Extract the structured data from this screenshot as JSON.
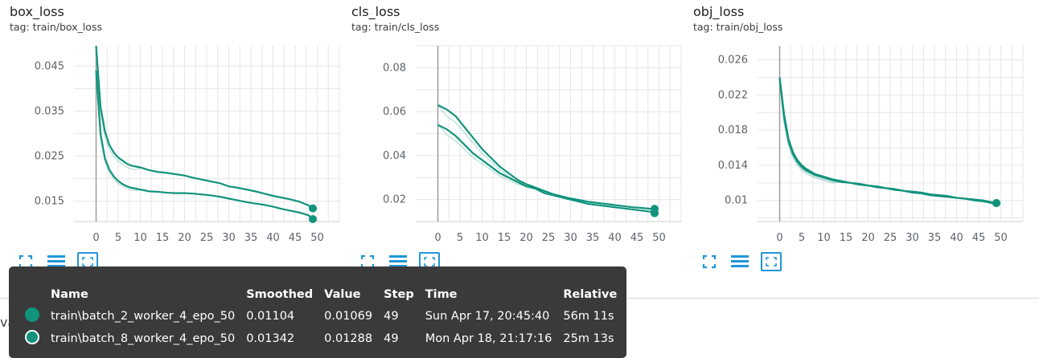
{
  "accent_color": "#2196d8",
  "charts": [
    {
      "title": "box_loss",
      "tag": "tag: train/box_loss",
      "chart_data": {
        "type": "line",
        "xlabel": "",
        "ylabel": "",
        "x_ticks": [
          "0",
          "5",
          "10",
          "15",
          "20",
          "25",
          "30",
          "35",
          "40",
          "45",
          "50"
        ],
        "y_ticks": [
          "0.015",
          "0.025",
          "0.035",
          "0.045"
        ],
        "y_tick_values": [
          0.015,
          0.025,
          0.035,
          0.045
        ],
        "xlim": [
          -5,
          55
        ],
        "ylim": [
          0.0105,
          0.0495
        ],
        "grid": true,
        "series": [
          {
            "name": "train\\batch_2_worker_4_epo_50",
            "color": "#11937c",
            "x": [
              0,
              1,
              2,
              3,
              4,
              5,
              6,
              7,
              8,
              9,
              10,
              12,
              14,
              16,
              18,
              20,
              22,
              24,
              26,
              28,
              30,
              32,
              34,
              36,
              38,
              40,
              42,
              44,
              46,
              48,
              49
            ],
            "y": [
              0.044,
              0.03,
              0.0245,
              0.022,
              0.0205,
              0.0195,
              0.0188,
              0.0183,
              0.018,
              0.0178,
              0.0176,
              0.0172,
              0.0171,
              0.0169,
              0.0168,
              0.0168,
              0.0167,
              0.0165,
              0.0163,
              0.016,
              0.0156,
              0.0152,
              0.0148,
              0.0145,
              0.0142,
              0.0138,
              0.0133,
              0.0129,
              0.0125,
              0.0119,
              0.01104
            ]
          },
          {
            "name": "train\\batch_8_worker_4_epo_50",
            "color": "#11937c",
            "x": [
              0,
              1,
              2,
              3,
              4,
              5,
              6,
              7,
              8,
              9,
              10,
              12,
              14,
              16,
              18,
              20,
              22,
              24,
              26,
              28,
              30,
              32,
              34,
              36,
              38,
              40,
              42,
              44,
              46,
              48,
              49
            ],
            "y": [
              0.0495,
              0.036,
              0.0305,
              0.0275,
              0.0258,
              0.0247,
              0.024,
              0.0233,
              0.0229,
              0.0227,
              0.0225,
              0.0219,
              0.0215,
              0.0213,
              0.021,
              0.0207,
              0.0202,
              0.0198,
              0.0194,
              0.019,
              0.0183,
              0.018,
              0.0176,
              0.0172,
              0.0167,
              0.0162,
              0.0158,
              0.0154,
              0.0149,
              0.0141,
              0.01342
            ]
          }
        ]
      }
    },
    {
      "title": "cls_loss",
      "tag": "tag: train/cls_loss",
      "chart_data": {
        "type": "line",
        "xlabel": "",
        "ylabel": "",
        "x_ticks": [
          "0",
          "5",
          "10",
          "15",
          "20",
          "25",
          "30",
          "35",
          "40",
          "45",
          "50"
        ],
        "y_ticks": [
          "0.02",
          "0.04",
          "0.06",
          "0.08"
        ],
        "y_tick_values": [
          0.02,
          0.04,
          0.06,
          0.08
        ],
        "xlim": [
          -5,
          55
        ],
        "ylim": [
          0.01,
          0.09
        ],
        "grid": true,
        "series": [
          {
            "name": "train\\batch_2_worker_4_epo_50",
            "color": "#11937c",
            "x": [
              0,
              2,
              4,
              6,
              8,
              10,
              12,
              14,
              16,
              18,
              20,
              22,
              24,
              26,
              28,
              30,
              32,
              34,
              36,
              38,
              40,
              42,
              44,
              46,
              48,
              49
            ],
            "y": [
              0.054,
              0.052,
              0.049,
              0.045,
              0.041,
              0.038,
              0.035,
              0.032,
              0.03,
              0.028,
              0.026,
              0.025,
              0.023,
              0.022,
              0.021,
              0.02,
              0.019,
              0.018,
              0.0175,
              0.017,
              0.0165,
              0.016,
              0.0155,
              0.015,
              0.0145,
              0.0138
            ]
          },
          {
            "name": "train\\batch_8_worker_4_epo_50",
            "color": "#11937c",
            "x": [
              0,
              2,
              4,
              6,
              8,
              10,
              12,
              14,
              16,
              18,
              20,
              22,
              24,
              26,
              28,
              30,
              32,
              34,
              36,
              38,
              40,
              42,
              44,
              46,
              48,
              49
            ],
            "y": [
              0.063,
              0.061,
              0.058,
              0.053,
              0.048,
              0.043,
              0.039,
              0.035,
              0.032,
              0.029,
              0.027,
              0.0255,
              0.024,
              0.0225,
              0.0215,
              0.0205,
              0.0198,
              0.019,
              0.0185,
              0.018,
              0.0175,
              0.017,
              0.0165,
              0.0162,
              0.0158,
              0.0158
            ]
          }
        ]
      }
    },
    {
      "title": "obj_loss",
      "tag": "tag: train/obj_loss",
      "chart_data": {
        "type": "line",
        "xlabel": "",
        "ylabel": "",
        "x_ticks": [
          "0",
          "5",
          "10",
          "15",
          "20",
          "25",
          "30",
          "35",
          "40",
          "45",
          "50"
        ],
        "y_ticks": [
          "0.01",
          "0.014",
          "0.018",
          "0.022",
          "0.026"
        ],
        "y_tick_values": [
          0.01,
          0.014,
          0.018,
          0.022,
          0.026
        ],
        "xlim": [
          -5,
          55
        ],
        "ylim": [
          0.0076,
          0.0276
        ],
        "grid": true,
        "series": [
          {
            "name": "train\\batch_2_worker_4_epo_50",
            "color": "#11937c",
            "x": [
              0,
              1,
              2,
              3,
              4,
              5,
              6,
              8,
              10,
              12,
              14,
              16,
              18,
              20,
              22,
              24,
              26,
              28,
              30,
              32,
              34,
              36,
              38,
              40,
              42,
              44,
              46,
              48,
              49
            ],
            "y": [
              0.0238,
              0.0195,
              0.0168,
              0.0153,
              0.0144,
              0.0138,
              0.0134,
              0.0129,
              0.0126,
              0.0123,
              0.0121,
              0.012,
              0.0118,
              0.0117,
              0.0115,
              0.0114,
              0.0112,
              0.0111,
              0.0109,
              0.0108,
              0.0106,
              0.0105,
              0.0104,
              0.0103,
              0.0102,
              0.01,
              0.0099,
              0.0097,
              0.0097
            ]
          },
          {
            "name": "train\\batch_8_worker_4_epo_50",
            "color": "#11937c",
            "x": [
              0,
              1,
              2,
              3,
              4,
              5,
              6,
              8,
              10,
              12,
              14,
              16,
              18,
              20,
              22,
              24,
              26,
              28,
              30,
              32,
              34,
              36,
              38,
              40,
              42,
              44,
              46,
              48,
              49
            ],
            "y": [
              0.024,
              0.0198,
              0.017,
              0.0155,
              0.0146,
              0.014,
              0.0136,
              0.013,
              0.0127,
              0.0124,
              0.0122,
              0.012,
              0.0119,
              0.0117,
              0.0116,
              0.0114,
              0.0113,
              0.0111,
              0.011,
              0.0109,
              0.0107,
              0.0106,
              0.0105,
              0.0103,
              0.0102,
              0.0101,
              0.01,
              0.0098,
              0.0097
            ]
          }
        ]
      }
    }
  ],
  "section_label": "val",
  "tooltip": {
    "headers": {
      "name": "Name",
      "smoothed": "Smoothed",
      "value": "Value",
      "step": "Step",
      "time": "Time",
      "relative": "Relative"
    },
    "rows": [
      {
        "color": "#11937c",
        "fill": "filled",
        "name": "train\\batch_2_worker_4_epo_50",
        "smoothed": "0.01104",
        "value": "0.01069",
        "step": "49",
        "time": "Sun Apr 17, 20:45:40",
        "relative": "56m 11s"
      },
      {
        "color": "#11937c",
        "fill": "ring",
        "name": "train\\batch_8_worker_4_epo_50",
        "smoothed": "0.01342",
        "value": "0.01288",
        "step": "49",
        "time": "Mon Apr 18, 21:17:16",
        "relative": "25m 13s"
      }
    ]
  }
}
